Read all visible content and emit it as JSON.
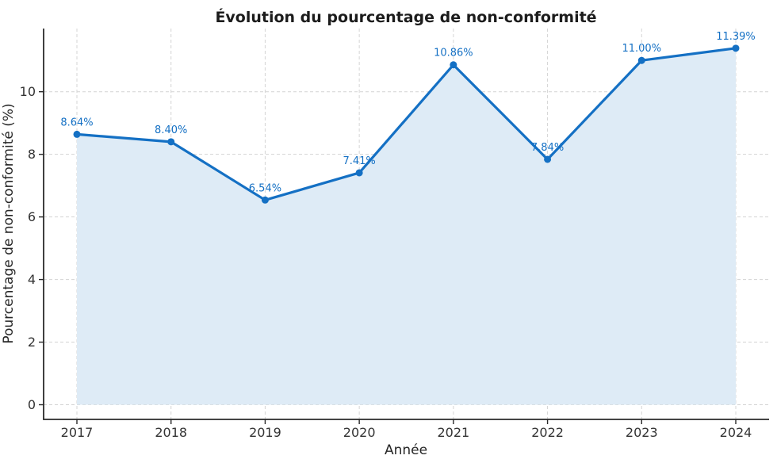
{
  "chart_data": {
    "type": "line",
    "subtype": "line-with-area-fill-and-markers",
    "title": "Évolution du pourcentage de non-conformité",
    "xlabel": "Année",
    "ylabel": "Pourcentage de non-conformité (%)",
    "categories": [
      "2017",
      "2018",
      "2019",
      "2020",
      "2021",
      "2022",
      "2023",
      "2024"
    ],
    "values": [
      8.64,
      8.4,
      6.54,
      7.41,
      10.86,
      7.84,
      11.0,
      11.39
    ],
    "point_labels": [
      "8.64%",
      "8.40%",
      "6.54%",
      "7.41%",
      "10.86%",
      "7.84%",
      "11.00%",
      "11.39%"
    ],
    "yticks": [
      0,
      2,
      4,
      6,
      8,
      10
    ],
    "ylim": [
      -0.47,
      12.02
    ],
    "grid": "both-dashed",
    "legend": "none",
    "colors": {
      "line": "#1470c4",
      "marker": "#1470c4",
      "area_fill": "#deebf6",
      "point_label": "#1470c4",
      "grid": "#d4d4d4",
      "spine": "#2a2a2a",
      "tick_label": "#333333",
      "background": "#ffffff"
    }
  }
}
